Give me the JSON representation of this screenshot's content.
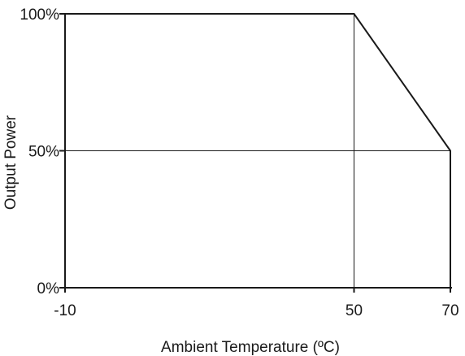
{
  "chart_data": {
    "type": "line",
    "xlabel": "Ambient Temperature (ºC)",
    "ylabel": "Output Power",
    "xlim": [
      -10,
      70
    ],
    "ylim": [
      0,
      100
    ],
    "x_ticks": [
      {
        "value": -10,
        "label": "-10"
      },
      {
        "value": 50,
        "label": "50"
      },
      {
        "value": 70,
        "label": "70"
      }
    ],
    "y_ticks": [
      {
        "value": 0,
        "label": "0%"
      },
      {
        "value": 50,
        "label": "50%"
      },
      {
        "value": 100,
        "label": "100%"
      }
    ],
    "gridlines": {
      "x": [
        50
      ],
      "y": [
        50
      ]
    },
    "series": [
      {
        "x": [
          -10,
          50,
          70,
          70
        ],
        "y": [
          100,
          100,
          50,
          0
        ]
      }
    ],
    "colors": {
      "line": "#1a1a1a",
      "grid": "#1a1a1a"
    }
  }
}
